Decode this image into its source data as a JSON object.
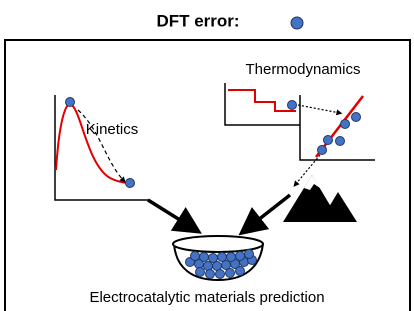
{
  "header": {
    "title": "DFT error:"
  },
  "labels": {
    "thermodynamics": "Thermodynamics",
    "kinetics": "Kinetics",
    "prediction": "Electrocatalytic materials prediction"
  }
}
